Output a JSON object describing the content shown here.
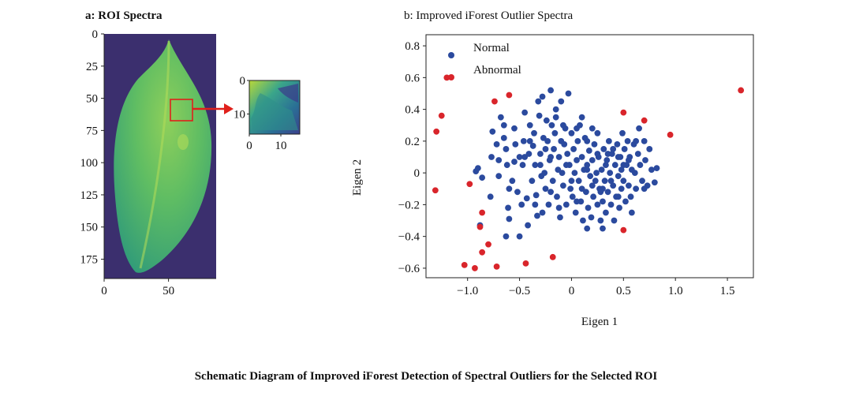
{
  "caption": "Schematic Diagram of Improved iForest Detection of Spectral Outliers for the Selected ROI",
  "panel_a": {
    "title": "a: ROI Spectra",
    "main_image": {
      "y_ticks": [
        "0",
        "25",
        "50",
        "75",
        "100",
        "125",
        "150",
        "175"
      ],
      "x_ticks": [
        "0",
        "50"
      ],
      "roi_box_color": "#e0201b",
      "background_color": "#3b2f6e",
      "leaf_color": "#44b36a"
    },
    "inset": {
      "y_ticks": [
        "0",
        "10"
      ],
      "x_ticks": [
        "0",
        "10"
      ]
    }
  },
  "chart_data": {
    "type": "scatter",
    "title": "b: Improved iForest Outlier Spectra",
    "xlabel": "Eigen 1",
    "ylabel": "Eigen 2",
    "xlim": [
      -1.4,
      1.75
    ],
    "ylim": [
      -0.66,
      0.87
    ],
    "x_ticks": [
      -1.0,
      -0.5,
      0,
      0.5,
      1.0,
      1.5
    ],
    "x_tick_labels": [
      "−1.0",
      "−0.5",
      "0",
      "0.5",
      "1.0",
      "1.5"
    ],
    "y_ticks": [
      0.8,
      0.6,
      0.4,
      0.2,
      0,
      -0.2,
      -0.4,
      -0.6
    ],
    "y_tick_labels": [
      "0.8",
      "0.6",
      "0.4",
      "0.2",
      "0",
      "−0.2",
      "−0.4",
      "−0.6"
    ],
    "grid": false,
    "legend": "top-left",
    "series": [
      {
        "name": "Normal",
        "color": "#2b4a9e",
        "points": [
          [
            -0.9,
            0.03
          ],
          [
            -0.92,
            0.01
          ],
          [
            -0.86,
            -0.03
          ],
          [
            -0.88,
            -0.33
          ],
          [
            -0.78,
            -0.15
          ],
          [
            -0.77,
            0.1
          ],
          [
            -0.76,
            0.26
          ],
          [
            -0.72,
            0.18
          ],
          [
            -0.7,
            0.08
          ],
          [
            -0.68,
            0.35
          ],
          [
            -0.65,
            0.22
          ],
          [
            -0.63,
            0.15
          ],
          [
            -0.62,
            0.05
          ],
          [
            -0.6,
            -0.1
          ],
          [
            -0.61,
            -0.22
          ],
          [
            -0.63,
            -0.4
          ],
          [
            -0.6,
            -0.29
          ],
          [
            -0.57,
            -0.05
          ],
          [
            -0.55,
            0.28
          ],
          [
            -0.54,
            0.18
          ],
          [
            -0.52,
            -0.12
          ],
          [
            -0.5,
            -0.4
          ],
          [
            -0.48,
            -0.2
          ],
          [
            -0.47,
            0.05
          ],
          [
            -0.46,
            0.2
          ],
          [
            -0.45,
            0.38
          ],
          [
            -0.43,
            -0.16
          ],
          [
            -0.42,
            -0.33
          ],
          [
            -0.41,
            0.12
          ],
          [
            -0.4,
            0.3
          ],
          [
            -0.38,
            -0.05
          ],
          [
            -0.37,
            0.17
          ],
          [
            -0.36,
            0.25
          ],
          [
            -0.35,
            0.05
          ],
          [
            -0.34,
            -0.14
          ],
          [
            -0.33,
            -0.27
          ],
          [
            -0.32,
            0.45
          ],
          [
            -0.31,
            0.36
          ],
          [
            -0.3,
            0.12
          ],
          [
            -0.29,
            -0.02
          ],
          [
            -0.28,
            0.48
          ],
          [
            -0.27,
            0.22
          ],
          [
            -0.26,
            0.0
          ],
          [
            -0.25,
            -0.1
          ],
          [
            -0.24,
            0.33
          ],
          [
            -0.23,
            0.2
          ],
          [
            -0.22,
            -0.2
          ],
          [
            -0.21,
            0.08
          ],
          [
            -0.2,
            0.52
          ],
          [
            -0.19,
            0.3
          ],
          [
            -0.18,
            -0.05
          ],
          [
            -0.17,
            0.15
          ],
          [
            -0.16,
            0.25
          ],
          [
            -0.15,
            0.4
          ],
          [
            -0.14,
            -0.15
          ],
          [
            -0.13,
            0.02
          ],
          [
            -0.12,
            0.1
          ],
          [
            -0.11,
            -0.28
          ],
          [
            -0.1,
            0.2
          ],
          [
            -0.09,
            0.0
          ],
          [
            -0.08,
            -0.08
          ],
          [
            -0.07,
            0.18
          ],
          [
            -0.06,
            0.28
          ],
          [
            -0.05,
            -0.2
          ],
          [
            -0.04,
            0.12
          ],
          [
            -0.03,
            0.5
          ],
          [
            -0.02,
            0.05
          ],
          [
            -0.01,
            -0.1
          ],
          [
            0.0,
            0.25
          ],
          [
            0.01,
            -0.15
          ],
          [
            0.02,
            0.15
          ],
          [
            0.03,
            0.0
          ],
          [
            0.04,
            -0.25
          ],
          [
            0.05,
            0.08
          ],
          [
            0.06,
            0.2
          ],
          [
            0.07,
            -0.05
          ],
          [
            0.08,
            0.3
          ],
          [
            0.09,
            -0.18
          ],
          [
            0.1,
            0.1
          ],
          [
            0.11,
            -0.3
          ],
          [
            0.12,
            0.02
          ],
          [
            0.13,
            0.22
          ],
          [
            0.14,
            -0.12
          ],
          [
            0.15,
            0.05
          ],
          [
            0.16,
            -0.22
          ],
          [
            0.17,
            0.14
          ],
          [
            0.18,
            -0.02
          ],
          [
            0.19,
            -0.28
          ],
          [
            0.2,
            0.08
          ],
          [
            0.21,
            -0.15
          ],
          [
            0.22,
            0.18
          ],
          [
            0.23,
            -0.05
          ],
          [
            0.24,
            0.0
          ],
          [
            0.25,
            -0.2
          ],
          [
            0.26,
            0.1
          ],
          [
            0.27,
            -0.1
          ],
          [
            0.28,
            -0.3
          ],
          [
            0.29,
            0.02
          ],
          [
            0.3,
            -0.18
          ],
          [
            0.31,
            0.15
          ],
          [
            0.32,
            -0.05
          ],
          [
            0.33,
            -0.25
          ],
          [
            0.34,
            0.08
          ],
          [
            0.35,
            -0.12
          ],
          [
            0.36,
            0.2
          ],
          [
            0.37,
            0.0
          ],
          [
            0.38,
            -0.2
          ],
          [
            0.39,
            0.12
          ],
          [
            0.4,
            -0.08
          ],
          [
            0.41,
            -0.3
          ],
          [
            0.42,
            0.05
          ],
          [
            0.43,
            -0.15
          ],
          [
            0.44,
            0.18
          ],
          [
            0.45,
            -0.02
          ],
          [
            0.46,
            -0.22
          ],
          [
            0.47,
            0.1
          ],
          [
            0.48,
            -0.1
          ],
          [
            0.49,
            0.25
          ],
          [
            0.5,
            -0.05
          ],
          [
            0.51,
            0.15
          ],
          [
            0.52,
            -0.18
          ],
          [
            0.53,
            0.05
          ],
          [
            0.54,
            0.2
          ],
          [
            0.55,
            -0.08
          ],
          [
            0.56,
            0.1
          ],
          [
            0.57,
            -0.15
          ],
          [
            0.58,
            0.02
          ],
          [
            0.6,
            0.18
          ],
          [
            0.61,
            0.0
          ],
          [
            0.62,
            -0.1
          ],
          [
            0.64,
            0.12
          ],
          [
            0.65,
            0.28
          ],
          [
            0.66,
            0.05
          ],
          [
            0.68,
            -0.05
          ],
          [
            0.7,
            0.2
          ],
          [
            0.71,
            0.08
          ],
          [
            0.73,
            -0.08
          ],
          [
            0.75,
            0.15
          ],
          [
            0.77,
            0.02
          ],
          [
            0.8,
            -0.06
          ],
          [
            0.82,
            0.03
          ],
          [
            0.3,
            -0.35
          ],
          [
            0.2,
            0.28
          ],
          [
            -0.2,
            0.1
          ],
          [
            -0.35,
            -0.2
          ],
          [
            -0.5,
            0.1
          ],
          [
            -0.65,
            0.3
          ],
          [
            -0.7,
            -0.02
          ],
          [
            -0.15,
            0.35
          ],
          [
            0.1,
            0.35
          ],
          [
            -0.1,
            0.45
          ],
          [
            0.05,
            0.28
          ],
          [
            -0.28,
            -0.25
          ],
          [
            0.15,
            -0.35
          ],
          [
            0.35,
            0.12
          ],
          [
            0.45,
            0.1
          ],
          [
            -0.4,
            0.2
          ],
          [
            0.25,
            0.12
          ],
          [
            0.4,
            0.15
          ],
          [
            0.58,
            -0.25
          ],
          [
            -0.45,
            0.1
          ],
          [
            -0.55,
            0.07
          ],
          [
            0.1,
            -0.1
          ],
          [
            0.2,
            -0.08
          ],
          [
            0.3,
            -0.1
          ],
          [
            0.0,
            -0.05
          ],
          [
            -0.05,
            0.05
          ],
          [
            0.15,
            0.02
          ],
          [
            -0.25,
            0.15
          ],
          [
            0.33,
            0.05
          ],
          [
            0.45,
            -0.15
          ],
          [
            0.5,
            0.05
          ],
          [
            -0.12,
            -0.22
          ],
          [
            0.05,
            -0.18
          ],
          [
            -0.3,
            0.05
          ],
          [
            0.15,
            0.2
          ],
          [
            -0.08,
            0.3
          ],
          [
            0.28,
            -0.12
          ],
          [
            0.38,
            -0.05
          ],
          [
            0.48,
            0.02
          ],
          [
            0.55,
            0.08
          ],
          [
            0.7,
            -0.1
          ],
          [
            0.62,
            0.2
          ],
          [
            -0.2,
            -0.12
          ],
          [
            0.25,
            0.25
          ]
        ]
      },
      {
        "name": "Abnormal",
        "color": "#d9252b",
        "points": [
          [
            -1.2,
            0.6
          ],
          [
            -1.25,
            0.36
          ],
          [
            -1.3,
            0.26
          ],
          [
            -1.31,
            -0.11
          ],
          [
            -0.98,
            -0.07
          ],
          [
            -0.86,
            -0.25
          ],
          [
            -0.88,
            -0.34
          ],
          [
            -0.86,
            -0.5
          ],
          [
            -0.8,
            -0.45
          ],
          [
            -0.72,
            -0.59
          ],
          [
            -0.74,
            0.45
          ],
          [
            -0.6,
            0.49
          ],
          [
            -0.93,
            -0.6
          ],
          [
            -1.03,
            -0.58
          ],
          [
            -0.44,
            -0.57
          ],
          [
            -0.18,
            -0.53
          ],
          [
            0.5,
            0.38
          ],
          [
            0.7,
            0.33
          ],
          [
            0.95,
            0.24
          ],
          [
            1.63,
            0.52
          ],
          [
            0.5,
            -0.36
          ]
        ]
      }
    ]
  }
}
